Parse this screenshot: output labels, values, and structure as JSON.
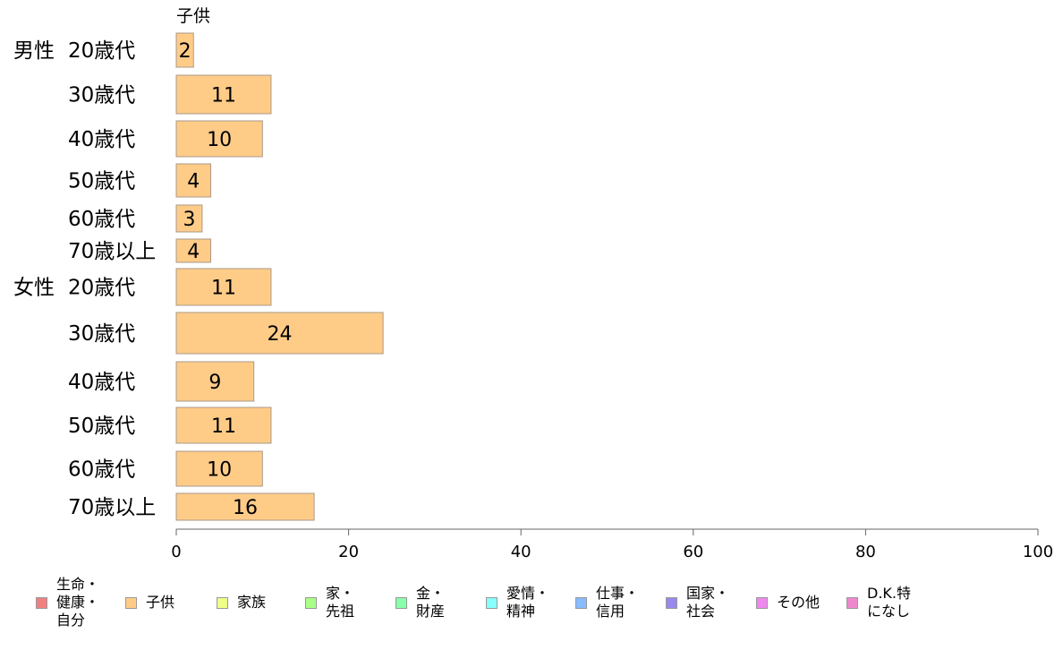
{
  "chart_data": {
    "type": "bar",
    "orientation": "horizontal",
    "panel_title": "子供",
    "groups": [
      {
        "label": "男性",
        "rows": [
          {
            "label": "20歳代",
            "value": 2
          },
          {
            "label": "30歳代",
            "value": 11
          },
          {
            "label": "40歳代",
            "value": 10
          },
          {
            "label": "50歳代",
            "value": 4
          },
          {
            "label": "60歳代",
            "value": 3
          },
          {
            "label": "70歳以上",
            "value": 4
          }
        ]
      },
      {
        "label": "女性",
        "rows": [
          {
            "label": "20歳代",
            "value": 11
          },
          {
            "label": "30歳代",
            "value": 24
          },
          {
            "label": "40歳代",
            "value": 9
          },
          {
            "label": "50歳代",
            "value": 11
          },
          {
            "label": "60歳代",
            "value": 10
          },
          {
            "label": "70歳以上",
            "value": 16
          }
        ]
      }
    ],
    "xlim": [
      0,
      100
    ],
    "xticks": [
      0,
      20,
      40,
      60,
      80,
      100
    ],
    "bar_color": "#FFCC88",
    "bar_border": "#AA9988",
    "grid": false
  },
  "legend": {
    "items": [
      {
        "label": "生命・\n健康・\n自分",
        "color": "#F08080"
      },
      {
        "label": "子供",
        "color": "#FFCC88"
      },
      {
        "label": "家族",
        "color": "#EEFF88"
      },
      {
        "label": "家・\n先祖",
        "color": "#AAFF88"
      },
      {
        "label": "金・\n財産",
        "color": "#88FFAA"
      },
      {
        "label": "愛情・\n精神",
        "color": "#88FFFF"
      },
      {
        "label": "仕事・\n信用",
        "color": "#88BBFF"
      },
      {
        "label": "国家・\n社会",
        "color": "#9988EE"
      },
      {
        "label": "その他",
        "color": "#EE88EE"
      },
      {
        "label": "D.K.特\nになし",
        "color": "#EE88CC"
      }
    ]
  }
}
